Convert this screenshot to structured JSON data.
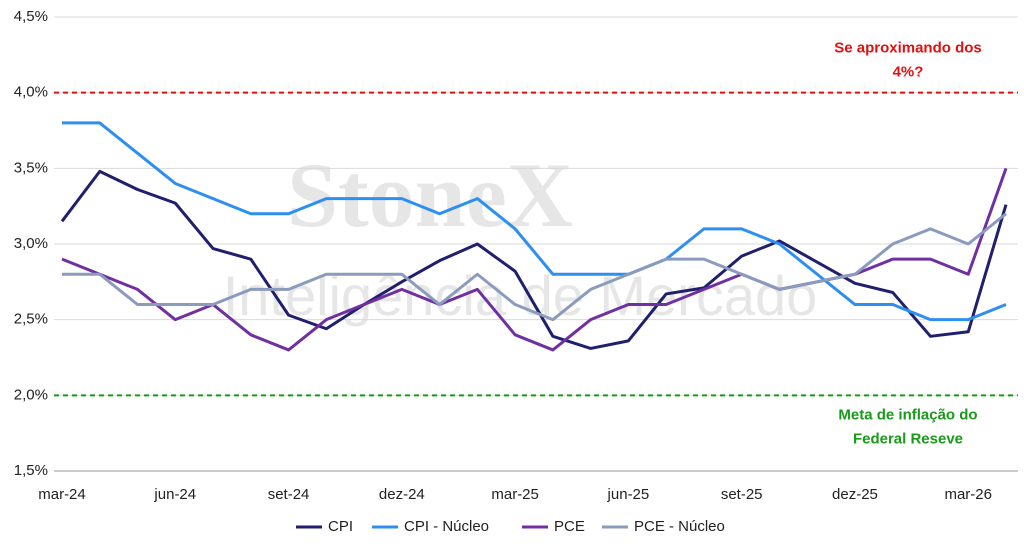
{
  "chart_data": {
    "type": "line",
    "watermark": [
      "StoneX",
      "Inteligência de Mercado"
    ],
    "categories": [
      "mar-24",
      null,
      null,
      "jun-24",
      null,
      null,
      "set-24",
      null,
      null,
      "dez-24",
      null,
      null,
      "mar-25",
      null,
      null,
      "jun-25",
      null,
      null,
      "set-25",
      null,
      null,
      "dez-25",
      null,
      null,
      "mar-26",
      null
    ],
    "series": [
      {
        "name": "CPI",
        "color": "#1f1f6e",
        "values": [
          3.15,
          3.48,
          3.36,
          3.27,
          2.97,
          2.9,
          2.53,
          2.44,
          2.6,
          2.75,
          2.89,
          3.0,
          2.82,
          2.39,
          2.31,
          2.36,
          2.67,
          2.71,
          2.92,
          3.02,
          2.88,
          2.74,
          2.68,
          2.39,
          2.42,
          3.26
        ]
      },
      {
        "name": "CPI - Núcleo",
        "color": "#2e8ff0",
        "values": [
          3.8,
          3.8,
          3.6,
          3.4,
          3.3,
          3.2,
          3.2,
          3.3,
          3.3,
          3.3,
          3.2,
          3.3,
          3.1,
          2.8,
          2.8,
          2.8,
          2.9,
          3.1,
          3.1,
          3.0,
          2.8,
          2.6,
          2.6,
          2.5,
          2.5,
          2.6
        ]
      },
      {
        "name": "PCE",
        "color": "#7030a0",
        "values": [
          2.9,
          2.8,
          2.7,
          2.5,
          2.6,
          2.4,
          2.3,
          2.5,
          2.6,
          2.7,
          2.6,
          2.7,
          2.4,
          2.3,
          2.5,
          2.6,
          2.6,
          2.7,
          2.8,
          2.7,
          2.75,
          2.8,
          2.9,
          2.9,
          2.8,
          3.5
        ]
      },
      {
        "name": "PCE - Núcleo",
        "color": "#8a9bbd",
        "values": [
          2.8,
          2.8,
          2.6,
          2.6,
          2.6,
          2.7,
          2.7,
          2.8,
          2.8,
          2.8,
          2.6,
          2.8,
          2.6,
          2.5,
          2.7,
          2.8,
          2.9,
          2.9,
          2.8,
          2.7,
          2.75,
          2.8,
          3.0,
          3.1,
          3.0,
          3.2
        ]
      }
    ],
    "ylim": [
      1.5,
      4.5
    ],
    "yticks": [
      {
        "value": 1.5,
        "label": "1,5%"
      },
      {
        "value": 2.0,
        "label": "2,0%"
      },
      {
        "value": 2.5,
        "label": "2,5%"
      },
      {
        "value": 3.0,
        "label": "3,0%"
      },
      {
        "value": 3.5,
        "label": "3,5%"
      },
      {
        "value": 4.0,
        "label": "4,0%"
      },
      {
        "value": 4.5,
        "label": "4,5%"
      }
    ],
    "grid": true,
    "legend": "bottom",
    "reference_lines": [
      {
        "value": 4.0,
        "color": "#e01010",
        "text": [
          "Se aproximando dos",
          "4%?"
        ]
      },
      {
        "value": 2.0,
        "color": "#1a9a1a",
        "text": [
          "Meta de inflação do",
          "Federal Reseve"
        ]
      }
    ]
  }
}
